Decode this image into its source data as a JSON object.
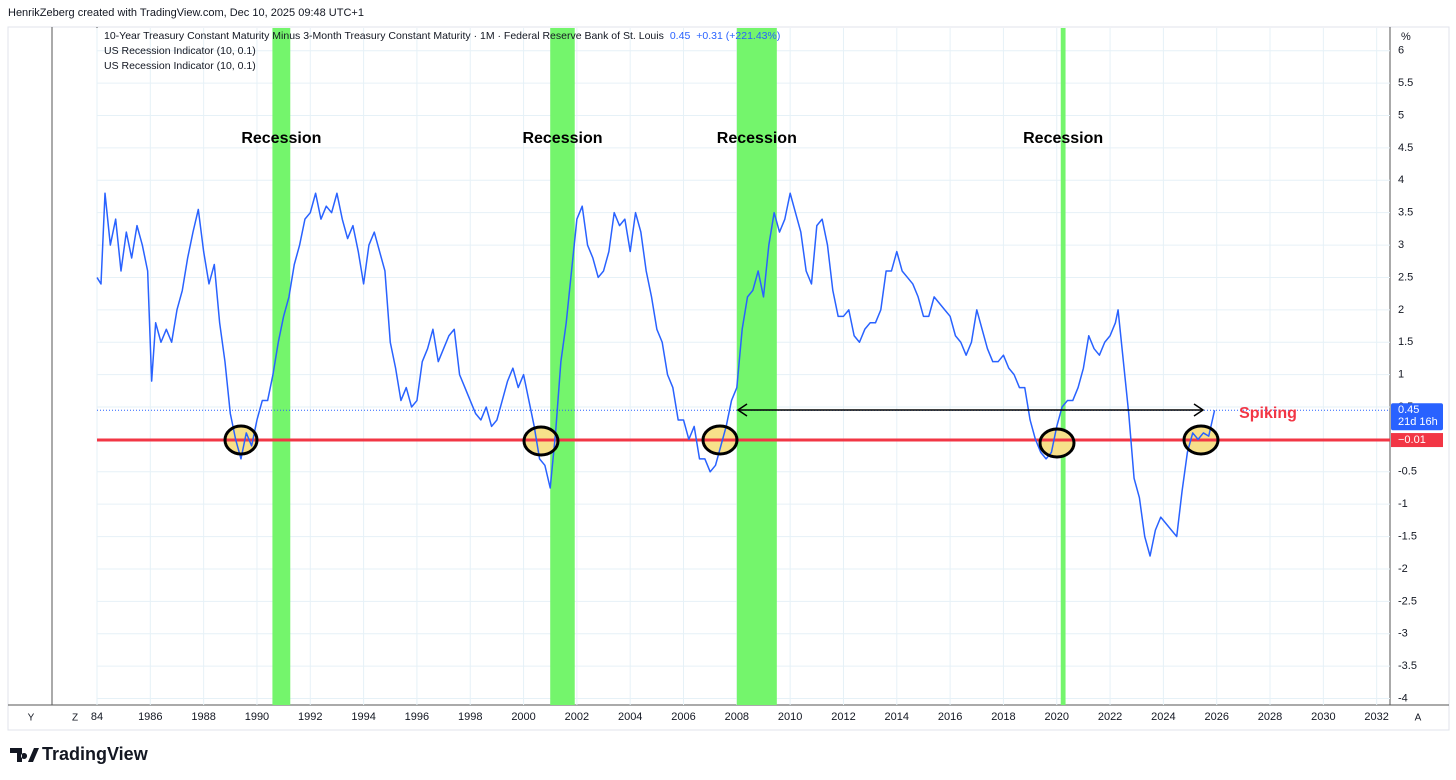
{
  "chart_data": {
    "type": "line",
    "header": "HenrikZeberg created with TradingView.com, Dec 10, 2025 09:48 UTC+1",
    "title": "10-Year Treasury Constant Maturity Minus 3-Month Treasury Constant Maturity · 1M · Federal Reserve Bank of St. Louis",
    "legend_value": 0.45,
    "legend_change": "+0.31 (+221.43%)",
    "indicators": [
      "US Recession Indicator (10, 0.1)",
      "US Recession Indicator (10, 0.1)"
    ],
    "unit": "%",
    "xlim": [
      1984.0,
      2032.5
    ],
    "ylim": [
      -4.1,
      6.32
    ],
    "xticks": [
      {
        "value": 1984,
        "label": "84"
      },
      1986,
      1988,
      1990,
      1992,
      1994,
      1996,
      1998,
      2000,
      2002,
      2004,
      2006,
      2008,
      2010,
      2012,
      2014,
      2016,
      2018,
      2020,
      2022,
      2024,
      2026,
      2028,
      2030,
      2032
    ],
    "yticks": [
      6,
      5.5,
      5,
      4.5,
      4,
      3.5,
      3,
      2.5,
      2,
      1.5,
      1,
      0.5,
      0,
      -0.5,
      -1,
      -1.5,
      -2,
      -2.5,
      -3,
      -3.5,
      -4
    ],
    "grid": true,
    "color": "#2962ff",
    "x": [
      1984.0,
      1984.15,
      1984.3,
      1984.5,
      1984.7,
      1984.9,
      1985.1,
      1985.3,
      1985.5,
      1985.7,
      1985.9,
      1986.05,
      1986.2,
      1986.4,
      1986.6,
      1986.8,
      1987.0,
      1987.2,
      1987.4,
      1987.6,
      1987.8,
      1988.0,
      1988.2,
      1988.4,
      1988.6,
      1988.8,
      1989.0,
      1989.2,
      1989.4,
      1989.6,
      1989.8,
      1990.0,
      1990.2,
      1990.4,
      1990.6,
      1990.8,
      1991.0,
      1991.2,
      1991.4,
      1991.6,
      1991.8,
      1992.0,
      1992.2,
      1992.4,
      1992.6,
      1992.8,
      1993.0,
      1993.2,
      1993.4,
      1993.6,
      1993.8,
      1994.0,
      1994.2,
      1994.4,
      1994.6,
      1994.8,
      1995.0,
      1995.2,
      1995.4,
      1995.6,
      1995.8,
      1996.0,
      1996.2,
      1996.4,
      1996.6,
      1996.8,
      1997.0,
      1997.2,
      1997.4,
      1997.6,
      1997.8,
      1998.0,
      1998.2,
      1998.4,
      1998.6,
      1998.8,
      1999.0,
      1999.2,
      1999.4,
      1999.6,
      1999.8,
      2000.0,
      2000.2,
      2000.4,
      2000.6,
      2000.8,
      2001.0,
      2001.2,
      2001.4,
      2001.6,
      2001.8,
      2002.0,
      2002.2,
      2002.4,
      2002.6,
      2002.8,
      2003.0,
      2003.2,
      2003.4,
      2003.6,
      2003.8,
      2004.0,
      2004.2,
      2004.4,
      2004.6,
      2004.8,
      2005.0,
      2005.2,
      2005.4,
      2005.6,
      2005.8,
      2006.0,
      2006.2,
      2006.4,
      2006.6,
      2006.8,
      2007.0,
      2007.2,
      2007.4,
      2007.6,
      2007.8,
      2008.0,
      2008.2,
      2008.4,
      2008.6,
      2008.8,
      2009.0,
      2009.2,
      2009.4,
      2009.6,
      2009.8,
      2010.0,
      2010.2,
      2010.4,
      2010.6,
      2010.8,
      2011.0,
      2011.2,
      2011.4,
      2011.6,
      2011.8,
      2012.0,
      2012.2,
      2012.4,
      2012.6,
      2012.8,
      2013.0,
      2013.2,
      2013.4,
      2013.6,
      2013.8,
      2014.0,
      2014.2,
      2014.4,
      2014.6,
      2014.8,
      2015.0,
      2015.2,
      2015.4,
      2015.6,
      2015.8,
      2016.0,
      2016.2,
      2016.4,
      2016.6,
      2016.8,
      2017.0,
      2017.2,
      2017.4,
      2017.6,
      2017.8,
      2018.0,
      2018.2,
      2018.4,
      2018.6,
      2018.8,
      2019.0,
      2019.2,
      2019.4,
      2019.6,
      2019.8,
      2020.0,
      2020.2,
      2020.4,
      2020.6,
      2020.8,
      2021.0,
      2021.2,
      2021.4,
      2021.6,
      2021.8,
      2022.0,
      2022.2,
      2022.3,
      2022.5,
      2022.7,
      2022.9,
      2023.1,
      2023.3,
      2023.5,
      2023.7,
      2023.9,
      2024.1,
      2024.3,
      2024.5,
      2024.7,
      2024.9,
      2025.1,
      2025.3,
      2025.5,
      2025.7,
      2025.92
    ],
    "values": [
      2.5,
      2.4,
      3.8,
      3.0,
      3.4,
      2.6,
      3.2,
      2.8,
      3.3,
      3.0,
      2.6,
      0.9,
      1.8,
      1.5,
      1.7,
      1.5,
      2.0,
      2.3,
      2.8,
      3.2,
      3.55,
      2.9,
      2.4,
      2.7,
      1.8,
      1.2,
      0.4,
      0.0,
      -0.3,
      0.1,
      -0.1,
      0.3,
      0.6,
      0.6,
      1.0,
      1.5,
      1.9,
      2.2,
      2.7,
      3.0,
      3.4,
      3.5,
      3.8,
      3.4,
      3.6,
      3.5,
      3.8,
      3.4,
      3.1,
      3.3,
      2.9,
      2.4,
      3.0,
      3.2,
      2.9,
      2.6,
      1.5,
      1.1,
      0.6,
      0.8,
      0.5,
      0.6,
      1.2,
      1.4,
      1.7,
      1.2,
      1.4,
      1.6,
      1.7,
      1.0,
      0.8,
      0.6,
      0.4,
      0.3,
      0.5,
      0.2,
      0.3,
      0.6,
      0.9,
      1.1,
      0.8,
      1.0,
      0.6,
      0.2,
      -0.3,
      -0.4,
      -0.75,
      0.1,
      1.2,
      1.8,
      2.6,
      3.4,
      3.6,
      3.0,
      2.8,
      2.5,
      2.6,
      2.9,
      3.5,
      3.3,
      3.4,
      2.9,
      3.5,
      3.2,
      2.6,
      2.2,
      1.7,
      1.5,
      1.0,
      0.8,
      0.3,
      0.3,
      0.0,
      0.2,
      -0.3,
      -0.3,
      -0.5,
      -0.4,
      -0.1,
      0.2,
      0.6,
      0.8,
      1.7,
      2.2,
      2.3,
      2.6,
      2.2,
      3.0,
      3.5,
      3.2,
      3.4,
      3.8,
      3.5,
      3.2,
      2.6,
      2.4,
      3.3,
      3.4,
      3.0,
      2.3,
      1.9,
      1.9,
      2.0,
      1.6,
      1.5,
      1.7,
      1.8,
      1.8,
      2.0,
      2.6,
      2.6,
      2.9,
      2.6,
      2.5,
      2.4,
      2.2,
      1.9,
      1.9,
      2.2,
      2.1,
      2.0,
      1.9,
      1.6,
      1.5,
      1.3,
      1.5,
      2.0,
      1.7,
      1.4,
      1.2,
      1.2,
      1.3,
      1.1,
      1.0,
      0.8,
      0.8,
      0.3,
      0.0,
      -0.2,
      -0.3,
      -0.2,
      0.2,
      0.5,
      0.6,
      0.6,
      0.8,
      1.1,
      1.6,
      1.4,
      1.3,
      1.5,
      1.6,
      1.8,
      2.0,
      1.2,
      0.4,
      -0.6,
      -0.9,
      -1.5,
      -1.8,
      -1.4,
      -1.2,
      -1.3,
      -1.4,
      -1.5,
      -0.8,
      -0.2,
      0.1,
      0.0,
      0.1,
      0.05,
      0.45
    ],
    "bands": [
      {
        "start": 1990.58,
        "end": 1991.25,
        "label": "Recession"
      },
      {
        "start": 2001.0,
        "end": 2001.92,
        "label": "Recession"
      },
      {
        "start": 2008.0,
        "end": 2009.5,
        "label": "Recession"
      },
      {
        "start": 2020.15,
        "end": 2020.33,
        "label": "Recession"
      }
    ],
    "band_color": "#74f56c",
    "hline": {
      "value": -0.01,
      "label": "−0.01",
      "color": "#f23645"
    },
    "last_value": 0.45,
    "countdown": "21d 16h",
    "annotation": "Spiking",
    "bottom_left": [
      "Y",
      "Z"
    ],
    "bottom_right": "A",
    "logo": "TradingView"
  }
}
